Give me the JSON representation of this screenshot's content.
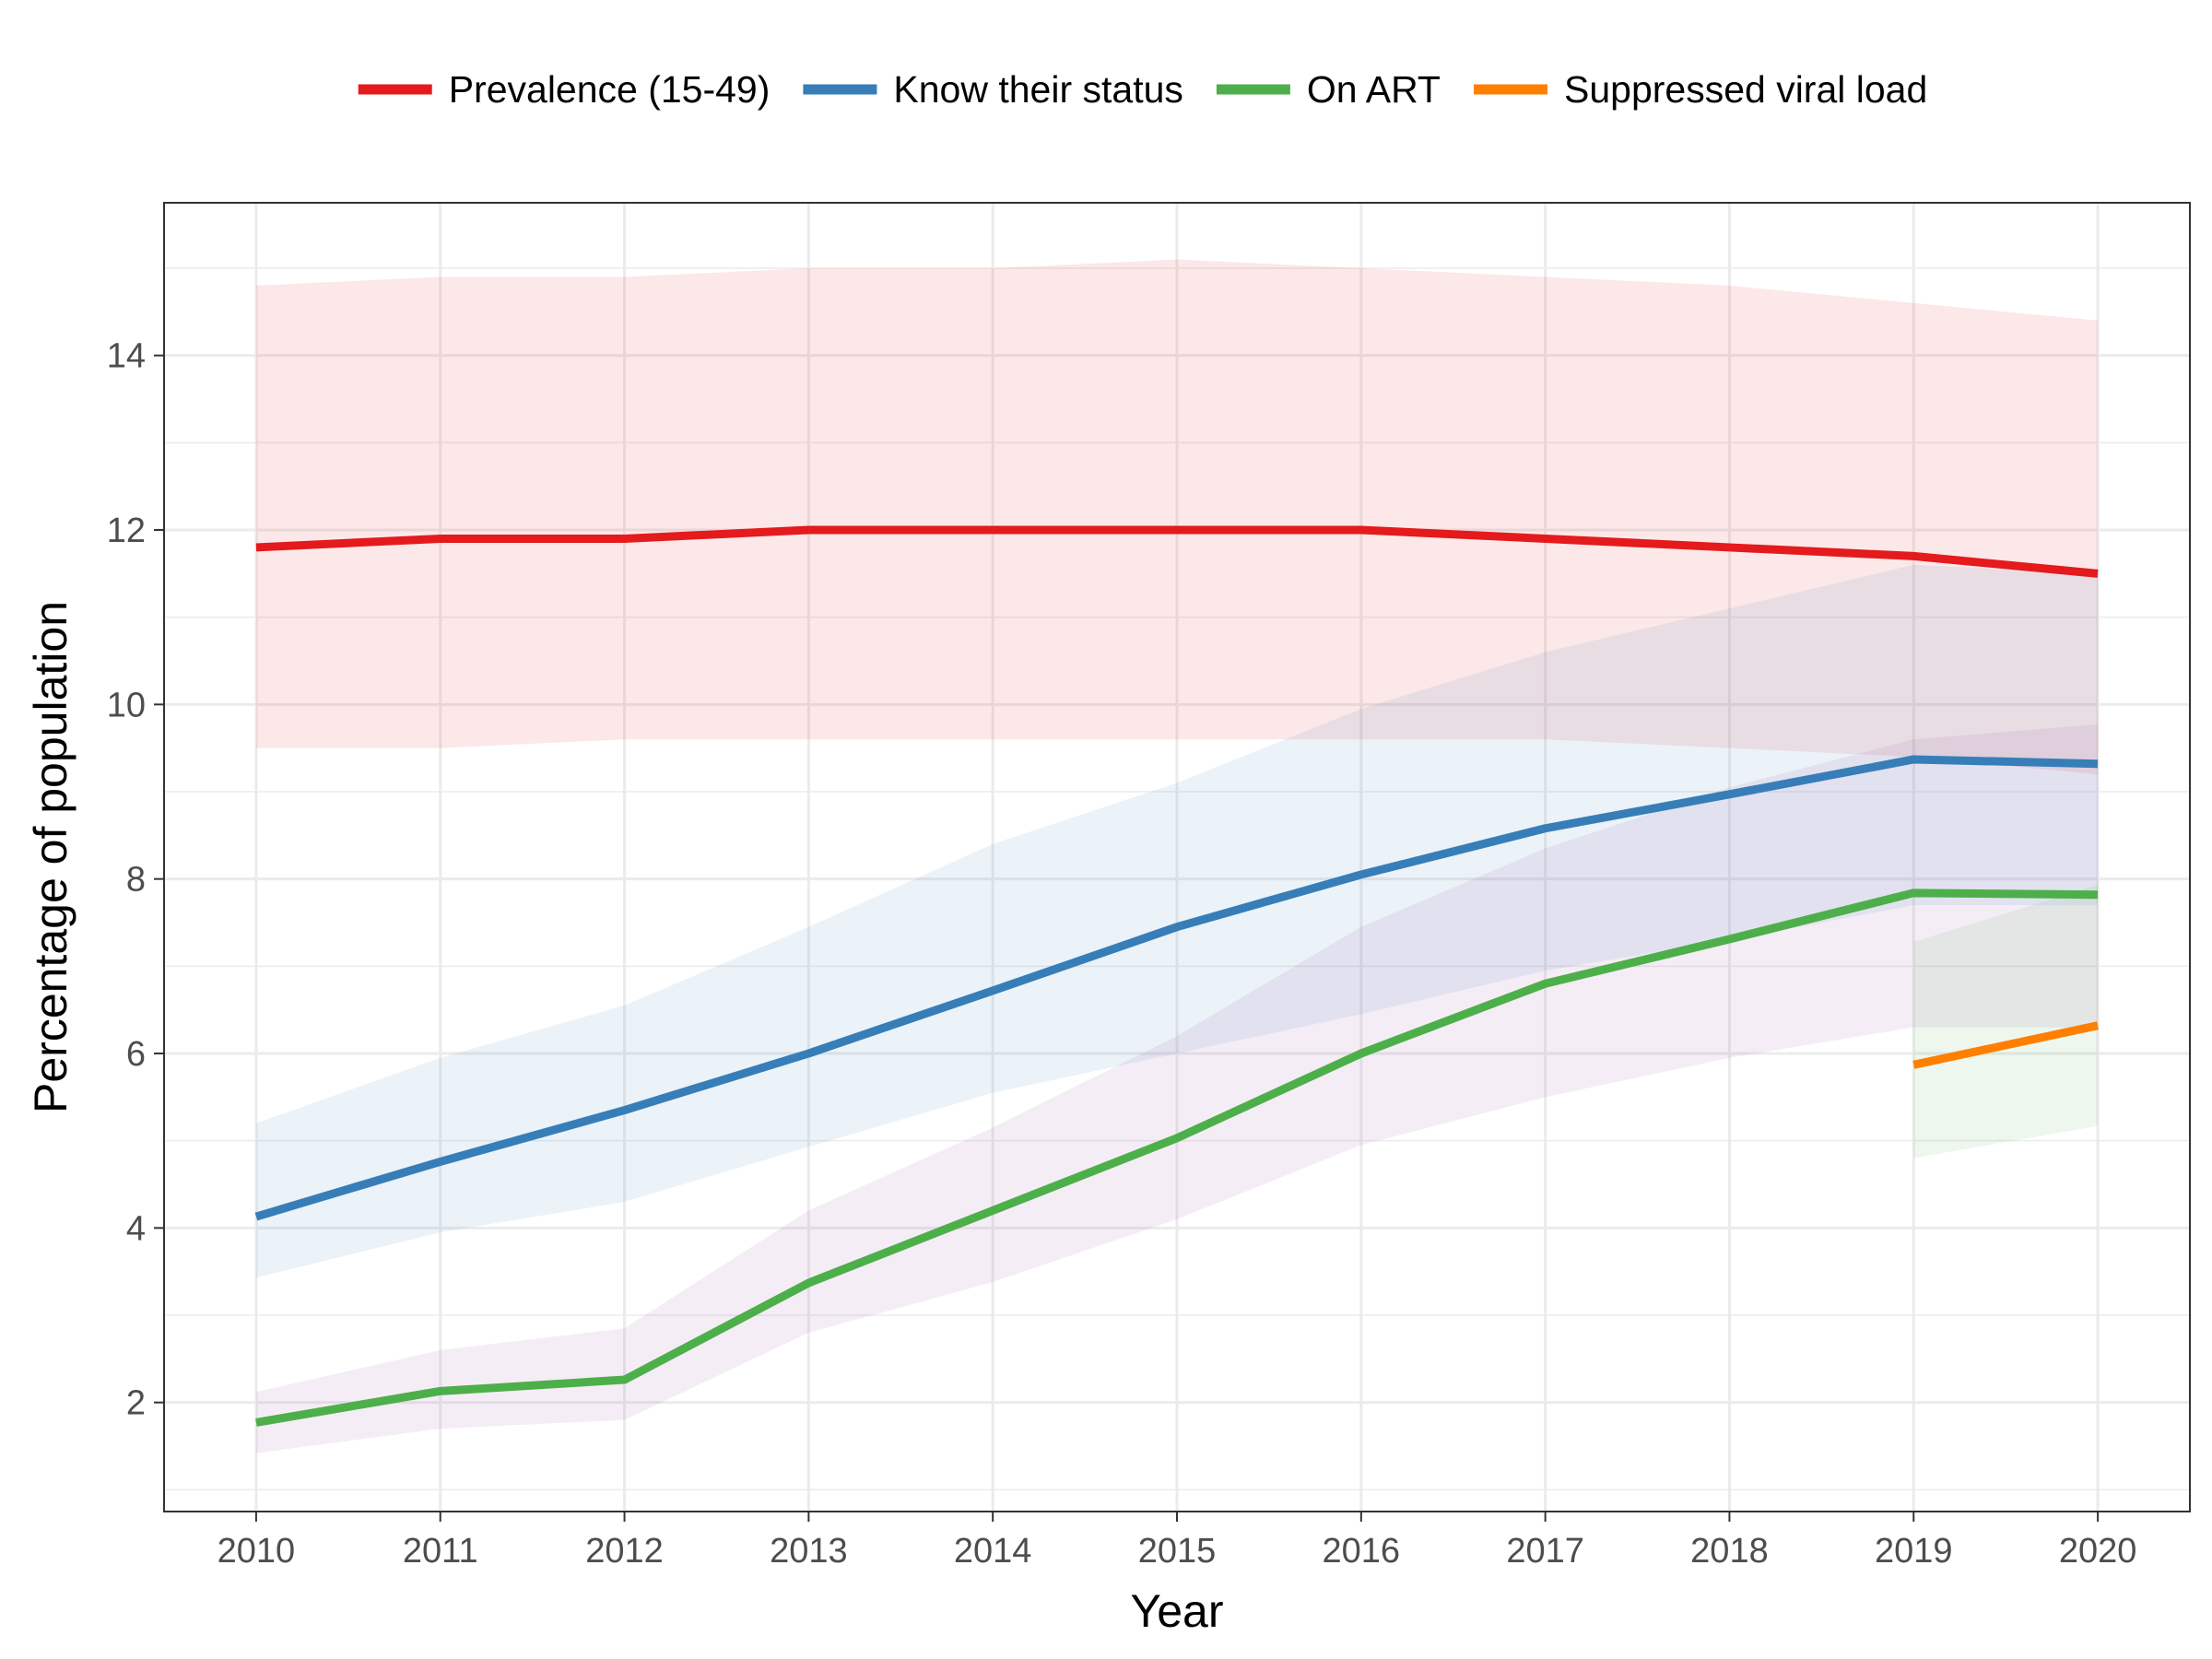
{
  "chart_data": {
    "type": "line",
    "title": "",
    "xlabel": "Year",
    "ylabel": "Percentage of population",
    "xlim": [
      2009.5,
      2020.5
    ],
    "ylim": [
      0.75,
      15.75
    ],
    "x_ticks": [
      2010,
      2011,
      2012,
      2013,
      2014,
      2015,
      2016,
      2017,
      2018,
      2019,
      2020
    ],
    "y_ticks": [
      2,
      4,
      6,
      8,
      10,
      12,
      14
    ],
    "grid": true,
    "legend_position": "top",
    "legend": [
      "Prevalence (15-49)",
      "Know their status",
      "On ART",
      "Suppressed viral load"
    ],
    "series": [
      {
        "name": "Prevalence (15-49)",
        "color": "#E41A1C",
        "band_color": "#E41A1C",
        "x": [
          2010,
          2011,
          2012,
          2013,
          2014,
          2015,
          2016,
          2017,
          2018,
          2019,
          2020
        ],
        "values": [
          11.8,
          11.9,
          11.9,
          12.0,
          12.0,
          12.0,
          12.0,
          11.9,
          11.8,
          11.7,
          11.5
        ],
        "lower": [
          9.5,
          9.5,
          9.6,
          9.6,
          9.6,
          9.6,
          9.6,
          9.6,
          9.5,
          9.4,
          9.2
        ],
        "upper": [
          14.8,
          14.9,
          14.9,
          15.0,
          15.0,
          15.1,
          15.0,
          14.9,
          14.8,
          14.6,
          14.4
        ]
      },
      {
        "name": "Know their status",
        "color": "#377EB8",
        "band_color": "#377EB8",
        "x": [
          2010,
          2011,
          2012,
          2013,
          2014,
          2015,
          2016,
          2017,
          2018,
          2019,
          2020
        ],
        "values": [
          4.13,
          4.76,
          5.35,
          6.0,
          6.72,
          7.45,
          8.05,
          8.58,
          8.97,
          9.37,
          9.32
        ],
        "lower": [
          3.43,
          3.95,
          4.3,
          4.93,
          5.55,
          6.0,
          6.45,
          6.95,
          7.3,
          7.7,
          7.7
        ],
        "upper": [
          5.2,
          5.95,
          6.55,
          7.45,
          8.4,
          9.1,
          9.95,
          10.6,
          11.1,
          11.6,
          11.5
        ]
      },
      {
        "name": "On ART",
        "color": "#4DAF4A",
        "band_color": "#984EA3",
        "x": [
          2010,
          2011,
          2012,
          2013,
          2014,
          2015,
          2016,
          2017,
          2018,
          2019,
          2020
        ],
        "values": [
          1.77,
          2.13,
          2.26,
          3.37,
          4.2,
          5.03,
          6.0,
          6.8,
          7.31,
          7.84,
          7.82
        ],
        "lower": [
          1.42,
          1.7,
          1.8,
          2.8,
          3.38,
          4.1,
          4.95,
          5.5,
          5.95,
          6.3,
          6.3
        ],
        "upper": [
          2.12,
          2.6,
          2.85,
          4.2,
          5.15,
          6.2,
          7.45,
          8.35,
          9.05,
          9.6,
          9.77
        ]
      },
      {
        "name": "Suppressed viral load",
        "color": "#FF7F00",
        "band_color": "#4DAF4A",
        "x": [
          2019,
          2020
        ],
        "values": [
          5.87,
          6.32
        ],
        "lower": [
          4.8,
          5.17
        ],
        "upper": [
          7.28,
          7.93
        ]
      }
    ]
  }
}
